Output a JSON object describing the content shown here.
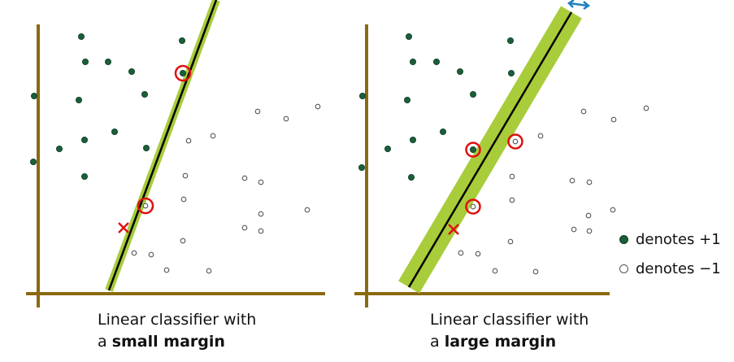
{
  "panels": [
    {
      "caption_line1": "Linear classifier with",
      "caption_prefix": "a",
      "caption_bold": "small margin"
    },
    {
      "caption_line1": "Linear classifier with",
      "caption_prefix": "a",
      "caption_bold": "large margin"
    }
  ],
  "legend": {
    "positive_label": "denotes +1",
    "negative_label": "denotes −1"
  },
  "colors": {
    "axis": "#8a6a10",
    "margin_band": "#a8cc3a",
    "boundary": "#000000",
    "positive_point": "#1b5e3a",
    "negative_point": "#ffffff",
    "support_circle": "#e01010",
    "misclassified_x": "#e01010",
    "arrow": "#1f7fc0"
  }
}
